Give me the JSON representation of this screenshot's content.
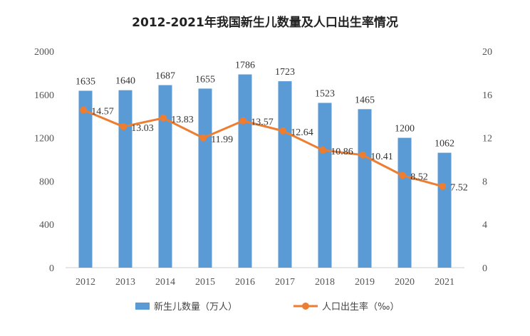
{
  "chart_data": {
    "type": "bar",
    "title": "2012-2021年我国新生儿数量及人口出生率情况",
    "categories": [
      "2012",
      "2013",
      "2014",
      "2015",
      "2016",
      "2017",
      "2018",
      "2019",
      "2020",
      "2021"
    ],
    "y_left": {
      "min": 0,
      "max": 2000,
      "ticks": [
        0,
        400,
        800,
        1200,
        1600,
        2000
      ]
    },
    "y_right": {
      "min": 0,
      "max": 20,
      "ticks": [
        0,
        4,
        8,
        12,
        16,
        20
      ]
    },
    "series": [
      {
        "name": "新生儿数量（万人）",
        "type": "bar",
        "axis": "left",
        "color": "#5b9bd5",
        "values": [
          1635,
          1640,
          1687,
          1655,
          1786,
          1723,
          1523,
          1465,
          1200,
          1062
        ]
      },
      {
        "name": "人口出生率（‰）",
        "type": "line",
        "axis": "right",
        "color": "#ed7d31",
        "values": [
          14.57,
          13.03,
          13.83,
          11.99,
          13.57,
          12.64,
          10.86,
          10.41,
          8.52,
          7.52
        ]
      }
    ],
    "legend_position": "bottom",
    "grid": false
  }
}
